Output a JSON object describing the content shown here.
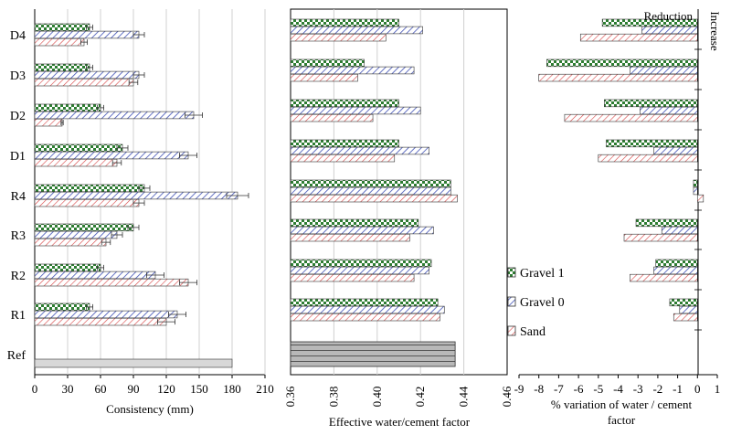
{
  "colors": {
    "gravel1_fg": "#2e7d32",
    "gravel1_bg": "#ffffff",
    "gravel0_fg": "#3f51b5",
    "gravel0_bg": "#ffffff",
    "sand_fg": "#d84343",
    "sand_bg": "#ffffff",
    "ref_consistency": "#d8d8d8",
    "ref_wc": "#b0b0b0",
    "bar_edge": "#333333",
    "grid": "#d0d0d0",
    "errorbar": "#333333"
  },
  "chart_data": [
    {
      "type": "bar",
      "orientation": "horizontal",
      "categories": [
        "R1",
        "R2",
        "R3",
        "R4",
        "D1",
        "D2",
        "D3",
        "D4"
      ],
      "ref_label": "Ref",
      "ref_value": 180,
      "series": [
        {
          "name": "Gravel 1",
          "values": [
            50,
            60,
            90,
            100,
            80,
            60,
            50,
            50
          ],
          "errors": [
            3,
            3,
            5,
            5,
            5,
            3,
            3,
            3
          ]
        },
        {
          "name": "Gravel 0",
          "values": [
            130,
            110,
            75,
            185,
            140,
            145,
            95,
            95
          ],
          "errors": [
            8,
            8,
            5,
            10,
            8,
            8,
            5,
            5
          ]
        },
        {
          "name": "Sand",
          "values": [
            120,
            140,
            65,
            95,
            75,
            25,
            90,
            45
          ],
          "errors": [
            8,
            8,
            4,
            5,
            4,
            1,
            4,
            3
          ]
        }
      ],
      "xlabel": "Consistency (mm)",
      "xlim": [
        0,
        210
      ],
      "xticks": [
        "0",
        "30",
        "60",
        "90",
        "120",
        "150",
        "180",
        "210"
      ],
      "grid": "vertical"
    },
    {
      "type": "bar",
      "orientation": "horizontal",
      "categories": [
        "R1",
        "R2",
        "R3",
        "R4",
        "D1",
        "D2",
        "D3",
        "D4"
      ],
      "ref_value": 0.436,
      "series": [
        {
          "name": "Gravel 1",
          "values": [
            0.428,
            0.425,
            0.419,
            0.434,
            0.41,
            0.41,
            0.394,
            0.41
          ]
        },
        {
          "name": "Gravel 0",
          "values": [
            0.431,
            0.424,
            0.426,
            0.434,
            0.424,
            0.42,
            0.417,
            0.421
          ]
        },
        {
          "name": "Sand",
          "values": [
            0.429,
            0.417,
            0.415,
            0.437,
            0.408,
            0.398,
            0.391,
            0.404
          ]
        }
      ],
      "xlabel": "Effective water/cement factor",
      "xlim": [
        0.36,
        0.46
      ],
      "xticks": [
        "0.36",
        "0.38",
        "0.40",
        "0.42",
        "0.44",
        "0.46"
      ],
      "grid": "vertical"
    },
    {
      "type": "bar",
      "orientation": "horizontal",
      "categories": [
        "R1",
        "R2",
        "R3",
        "R4",
        "D1",
        "D2",
        "D3",
        "D4"
      ],
      "series": [
        {
          "name": "Gravel 1",
          "values": [
            -1.4,
            -2.1,
            -3.1,
            -0.2,
            -4.6,
            -4.7,
            -7.6,
            -4.8
          ]
        },
        {
          "name": "Gravel 0",
          "values": [
            -0.9,
            -2.2,
            -1.8,
            -0.2,
            -2.2,
            -2.9,
            -3.4,
            -2.8
          ]
        },
        {
          "name": "Sand",
          "values": [
            -1.2,
            -3.4,
            -3.7,
            0.3,
            -5.0,
            -6.7,
            -8.0,
            -5.9
          ]
        }
      ],
      "xlabel_line1": "% variation of water / cement",
      "xlabel_line2": "factor",
      "xlim": [
        -9,
        1
      ],
      "xticks": [
        "-9",
        "-8",
        "-7",
        "-6",
        "-5",
        "-4",
        "-3",
        "-2",
        "-1",
        "0",
        "1"
      ],
      "annotation_reduction": "Reduction",
      "annotation_increase": "Increase",
      "grid": "none"
    }
  ],
  "legend": {
    "placement": "bottom-right of middle panel",
    "entries": [
      "Gravel 1",
      "Gravel 0",
      "Sand"
    ]
  }
}
